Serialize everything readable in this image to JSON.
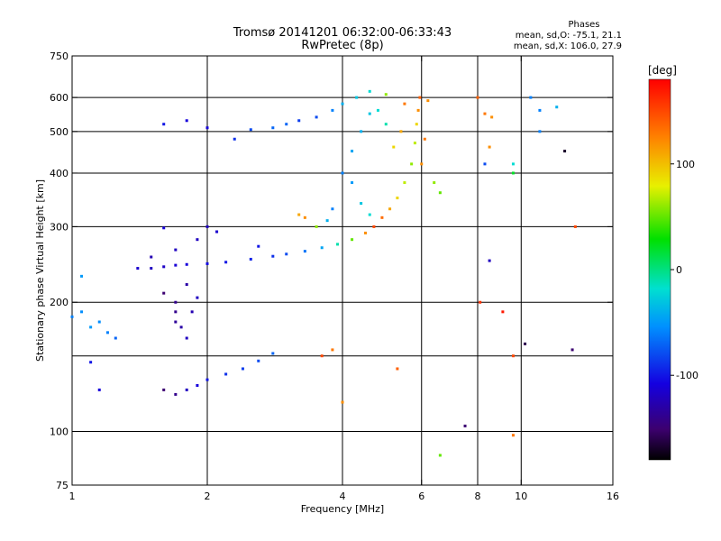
{
  "chart_data": {
    "type": "scatter",
    "title": "Tromsø 20141201 06:32:00-06:33:43",
    "subtitle": "RwPretec (8p)",
    "xlabel": "Frequency [MHz]",
    "ylabel": "Stationary phase Virtual Height [km]",
    "x_scale": "log",
    "y_scale": "log",
    "xlim": [
      1,
      16
    ],
    "ylim": [
      75,
      750
    ],
    "x_ticks": [
      1,
      2,
      4,
      6,
      8,
      10,
      16
    ],
    "x_tick_labels": [
      "1",
      "2",
      "4",
      "6",
      "8",
      "10",
      "16"
    ],
    "y_ticks": [
      75,
      100,
      200,
      300,
      400,
      500,
      600,
      750
    ],
    "y_tick_labels": [
      "75",
      "100",
      "200",
      "300",
      "400",
      "500",
      "600",
      "750"
    ],
    "grid": true,
    "x_grid": [
      2,
      4,
      6,
      8,
      10
    ],
    "y_grid": [
      100,
      150,
      200,
      300,
      400,
      500,
      600
    ],
    "legend": {
      "title": "Phases",
      "lines": [
        "mean, sd,O: -75.1, 21.1",
        "mean, sd,X: 106.0, 27.9"
      ],
      "placement": "top-right"
    },
    "colorbar": {
      "label": "[deg]",
      "range": [
        -180,
        180
      ],
      "ticks": [
        100,
        0,
        -100
      ],
      "tick_labels": [
        "100",
        "0",
        "-100"
      ]
    },
    "series": [
      {
        "name": "Echo traces (frequency MHz, height km, phase deg)",
        "points": [
          [
            1.4,
            240,
            -115
          ],
          [
            1.5,
            240,
            -120
          ],
          [
            1.6,
            242,
            -118
          ],
          [
            1.7,
            244,
            -112
          ],
          [
            1.8,
            245,
            -110
          ],
          [
            2.0,
            246,
            -105
          ],
          [
            2.2,
            248,
            -100
          ],
          [
            2.5,
            252,
            -95
          ],
          [
            2.8,
            256,
            -90
          ],
          [
            3.0,
            259,
            -80
          ],
          [
            3.3,
            263,
            -65
          ],
          [
            3.6,
            268,
            -45
          ],
          [
            3.9,
            273,
            -10
          ],
          [
            4.2,
            280,
            50
          ],
          [
            4.5,
            290,
            120
          ],
          [
            4.7,
            300,
            150
          ],
          [
            4.9,
            315,
            135
          ],
          [
            5.1,
            330,
            110
          ],
          [
            5.3,
            350,
            90
          ],
          [
            5.5,
            380,
            70
          ],
          [
            5.7,
            420,
            60
          ],
          [
            5.8,
            470,
            70
          ],
          [
            5.85,
            520,
            90
          ],
          [
            5.9,
            560,
            120
          ],
          [
            5.95,
            600,
            140
          ],
          [
            1.5,
            255,
            -125
          ],
          [
            1.7,
            265,
            -120
          ],
          [
            1.9,
            280,
            -120
          ],
          [
            2.1,
            292,
            -115
          ],
          [
            1.6,
            298,
            -110
          ],
          [
            2.0,
            300,
            -120
          ],
          [
            2.6,
            270,
            -100
          ],
          [
            3.2,
            320,
            110
          ],
          [
            3.3,
            315,
            120
          ],
          [
            3.5,
            300,
            60
          ],
          [
            3.8,
            330,
            -60
          ],
          [
            3.7,
            310,
            -40
          ],
          [
            1.6,
            520,
            -100
          ],
          [
            1.8,
            530,
            -110
          ],
          [
            2.0,
            510,
            -110
          ],
          [
            2.3,
            480,
            -90
          ],
          [
            2.5,
            505,
            -80
          ],
          [
            2.8,
            510,
            -70
          ],
          [
            3.0,
            520,
            -70
          ],
          [
            3.2,
            530,
            -85
          ],
          [
            3.5,
            540,
            -80
          ],
          [
            3.8,
            560,
            -60
          ],
          [
            4.0,
            580,
            -40
          ],
          [
            4.3,
            600,
            -30
          ],
          [
            4.6,
            620,
            -20
          ],
          [
            5.0,
            610,
            60
          ],
          [
            5.5,
            580,
            130
          ],
          [
            6.2,
            590,
            120
          ],
          [
            4.0,
            400,
            -60
          ],
          [
            4.2,
            450,
            -45
          ],
          [
            4.4,
            500,
            -40
          ],
          [
            4.6,
            550,
            -30
          ],
          [
            4.8,
            560,
            -20
          ],
          [
            5.0,
            520,
            -10
          ],
          [
            4.2,
            380,
            -50
          ],
          [
            4.4,
            340,
            -30
          ],
          [
            4.6,
            320,
            -20
          ],
          [
            5.2,
            460,
            90
          ],
          [
            5.4,
            500,
            110
          ],
          [
            6.0,
            420,
            120
          ],
          [
            6.1,
            480,
            130
          ],
          [
            6.4,
            380,
            60
          ],
          [
            6.6,
            360,
            50
          ],
          [
            1.6,
            210,
            -150
          ],
          [
            1.7,
            190,
            -140
          ],
          [
            1.75,
            175,
            -130
          ],
          [
            1.8,
            165,
            -120
          ],
          [
            1.7,
            200,
            -140
          ],
          [
            1.8,
            220,
            -130
          ],
          [
            1.9,
            205,
            -120
          ],
          [
            1.7,
            180,
            -135
          ],
          [
            1.85,
            190,
            -125
          ],
          [
            1.6,
            125,
            -150
          ],
          [
            1.7,
            122,
            -140
          ],
          [
            1.8,
            125,
            -120
          ],
          [
            1.9,
            128,
            -110
          ],
          [
            2.0,
            132,
            -100
          ],
          [
            2.2,
            136,
            -90
          ],
          [
            2.4,
            140,
            -85
          ],
          [
            2.6,
            146,
            -80
          ],
          [
            2.8,
            152,
            -70
          ],
          [
            1.0,
            185,
            -60
          ],
          [
            1.05,
            190,
            -55
          ],
          [
            1.1,
            175,
            -50
          ],
          [
            1.15,
            180,
            -55
          ],
          [
            1.2,
            170,
            -60
          ],
          [
            1.25,
            165,
            -70
          ],
          [
            1.05,
            230,
            -50
          ],
          [
            1.1,
            145,
            -100
          ],
          [
            1.15,
            125,
            -110
          ],
          [
            9.6,
            98,
            130
          ],
          [
            9.6,
            150,
            150
          ],
          [
            9.1,
            190,
            170
          ],
          [
            8.1,
            200,
            160
          ],
          [
            8.5,
            250,
            -120
          ],
          [
            7.5,
            103,
            -150
          ],
          [
            10.2,
            160,
            -160
          ],
          [
            6.6,
            88,
            50
          ],
          [
            8.0,
            600,
            140
          ],
          [
            8.3,
            550,
            130
          ],
          [
            8.5,
            460,
            120
          ],
          [
            8.6,
            540,
            120
          ],
          [
            8.3,
            420,
            -80
          ],
          [
            9.6,
            420,
            -20
          ],
          [
            9.6,
            400,
            20
          ],
          [
            10.5,
            600,
            -60
          ],
          [
            11.0,
            560,
            -60
          ],
          [
            11.0,
            500,
            -60
          ],
          [
            12.0,
            570,
            -40
          ],
          [
            12.5,
            450,
            -170
          ],
          [
            13.2,
            300,
            150
          ],
          [
            13.0,
            155,
            -150
          ],
          [
            5.3,
            140,
            140
          ],
          [
            4.0,
            117,
            120
          ],
          [
            3.8,
            155,
            130
          ],
          [
            3.6,
            150,
            150
          ]
        ]
      }
    ]
  }
}
